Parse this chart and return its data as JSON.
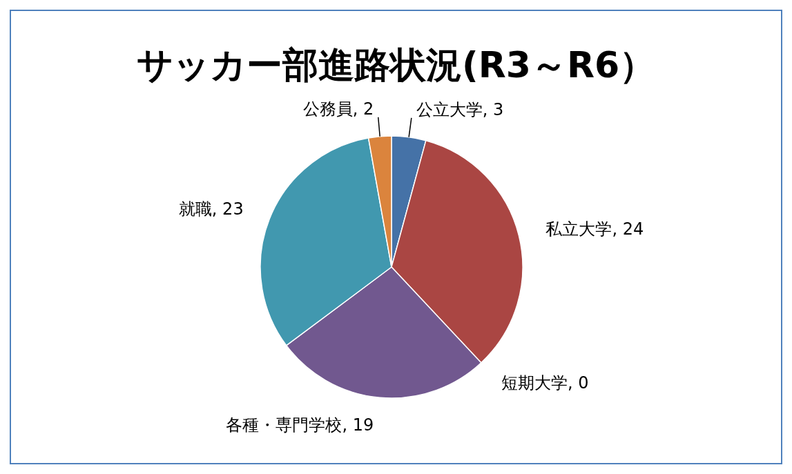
{
  "chart_data": {
    "type": "pie",
    "title": "サッカー部進路状況(R3～R6）",
    "categories": [
      "公立大学",
      "私立大学",
      "短期大学",
      "各種・専門学校",
      "就職",
      "公務員"
    ],
    "values": [
      3,
      24,
      0,
      19,
      23,
      2
    ],
    "colors": [
      "#4572a7",
      "#aa4643",
      "#89a54e",
      "#71588f",
      "#4198af",
      "#db843d"
    ],
    "value_labels": [
      ", 3",
      ", 24",
      ", 0",
      ", 19",
      ", 23",
      ", 2"
    ],
    "legend": false
  }
}
